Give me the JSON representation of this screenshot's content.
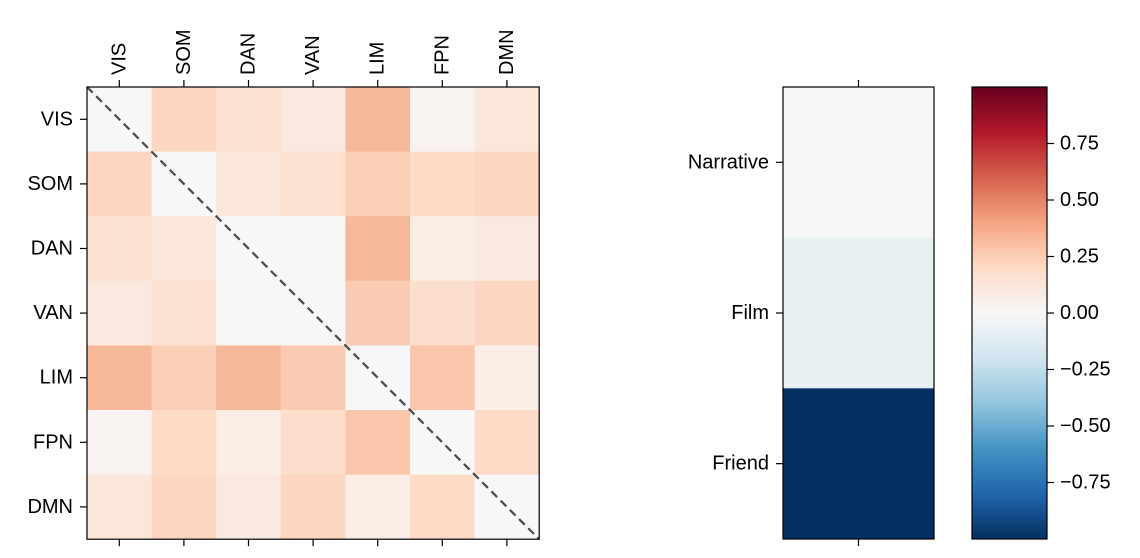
{
  "figure": {
    "background": "#ffffff"
  },
  "chart_data": [
    {
      "type": "heatmap",
      "title": "",
      "xlabel": "",
      "ylabel": "",
      "x_categories": [
        "VIS",
        "SOM",
        "DAN",
        "VAN",
        "LIM",
        "FPN",
        "DMN"
      ],
      "y_categories": [
        "VIS",
        "SOM",
        "DAN",
        "VAN",
        "LIM",
        "FPN",
        "DMN"
      ],
      "x_tick_position": "top",
      "matrix": [
        [
          0.0,
          0.22,
          0.16,
          0.1,
          0.33,
          0.03,
          0.12
        ],
        [
          0.22,
          0.0,
          0.12,
          0.16,
          0.24,
          0.2,
          0.22
        ],
        [
          0.16,
          0.12,
          0.0,
          0.0,
          0.33,
          0.07,
          0.1
        ],
        [
          0.1,
          0.16,
          0.0,
          0.0,
          0.26,
          0.18,
          0.22
        ],
        [
          0.33,
          0.24,
          0.33,
          0.26,
          0.0,
          0.28,
          0.07
        ],
        [
          0.03,
          0.2,
          0.07,
          0.18,
          0.28,
          0.0,
          0.2
        ],
        [
          0.12,
          0.22,
          0.1,
          0.22,
          0.07,
          0.2,
          0.0
        ]
      ],
      "diagonal_line": {
        "style": "dashed",
        "color": "#4a4a4a"
      },
      "vmin": -1,
      "vmax": 1
    },
    {
      "type": "heatmap",
      "title": "",
      "categories": [
        "Narrative",
        "Film",
        "Friend"
      ],
      "values": [
        0.0,
        -0.08,
        -1.0
      ],
      "vmin": -1,
      "vmax": 1
    }
  ],
  "colorbar": {
    "colormap": "RdBu_r",
    "colormap_stops": [
      "#053061",
      "#2166ac",
      "#4393c3",
      "#92c5de",
      "#d1e5f0",
      "#f7f7f7",
      "#fddbc7",
      "#f4a582",
      "#d6604d",
      "#b2182b",
      "#67001f"
    ],
    "vmin": -1,
    "vmax": 1,
    "ticks": [
      0.75,
      0.5,
      0.25,
      0.0,
      -0.25,
      -0.5,
      -0.75
    ],
    "tick_labels": [
      "0.75",
      "0.50",
      "0.25",
      "0.00",
      "−0.25",
      "−0.50",
      "−0.75"
    ]
  }
}
